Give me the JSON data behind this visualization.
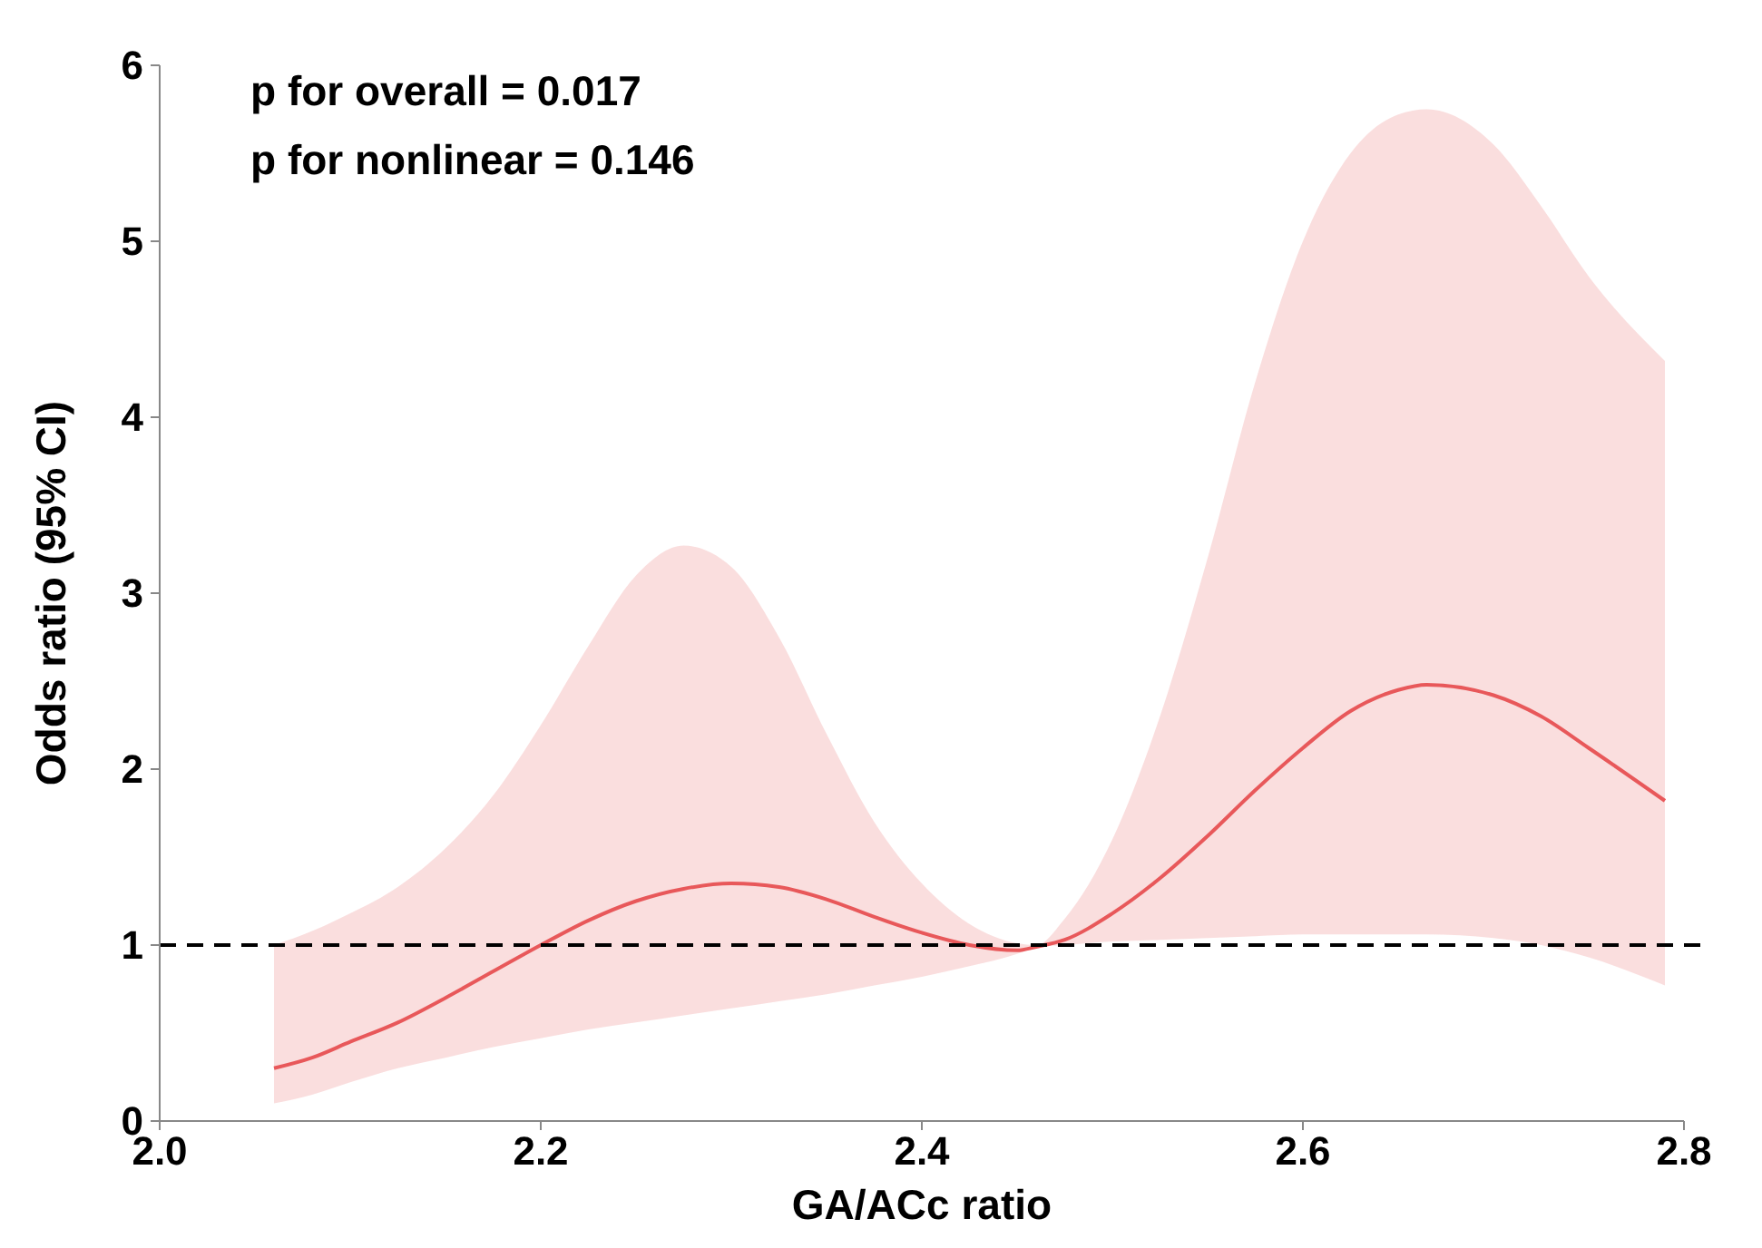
{
  "chart_data": {
    "type": "line",
    "xlabel": "GA/ACc ratio",
    "ylabel": "Odds ratio (95% CI)",
    "annotations": [
      "p for overall = 0.017",
      "p for nonlinear = 0.146"
    ],
    "xlim": [
      2.0,
      2.8
    ],
    "xticks": [
      {
        "value": 2,
        "label": "2.0"
      },
      2.2,
      2.4,
      2.6,
      2.8
    ],
    "ylim": [
      0,
      6
    ],
    "yticks": [
      0,
      1,
      2,
      3,
      4,
      5,
      6
    ],
    "grid": false,
    "marker": "none",
    "line_style": "solid",
    "ref_lines": [
      {
        "axis": "y",
        "value": 1,
        "label": null,
        "color": "#000000",
        "line_style": "dashed"
      }
    ],
    "series": [
      {
        "color": "#e8585a",
        "x": [
          2.06,
          2.08,
          2.1,
          2.125,
          2.15,
          2.175,
          2.2,
          2.225,
          2.25,
          2.275,
          2.3,
          2.325,
          2.35,
          2.375,
          2.4,
          2.425,
          2.45,
          2.46,
          2.475,
          2.5,
          2.525,
          2.55,
          2.575,
          2.6,
          2.625,
          2.65,
          2.665,
          2.7,
          2.725,
          2.75,
          2.79
        ],
        "values": [
          0.3,
          0.36,
          0.45,
          0.56,
          0.7,
          0.85,
          1.0,
          1.14,
          1.25,
          1.32,
          1.35,
          1.33,
          1.26,
          1.16,
          1.07,
          1.0,
          0.97,
          0.99,
          1.03,
          1.18,
          1.38,
          1.62,
          1.88,
          2.12,
          2.33,
          2.45,
          2.48,
          2.42,
          2.3,
          2.12,
          1.82
        ],
        "lower": [
          0.1,
          0.15,
          0.22,
          0.3,
          0.36,
          0.42,
          0.47,
          0.52,
          0.56,
          0.6,
          0.64,
          0.68,
          0.72,
          0.77,
          0.82,
          0.88,
          0.95,
          0.99,
          1.0,
          1.02,
          1.03,
          1.04,
          1.05,
          1.06,
          1.06,
          1.06,
          1.06,
          1.04,
          1.0,
          0.93,
          0.77
        ],
        "upper": [
          1.0,
          1.08,
          1.18,
          1.33,
          1.55,
          1.85,
          2.25,
          2.7,
          3.1,
          3.27,
          3.15,
          2.75,
          2.2,
          1.7,
          1.35,
          1.12,
          1.01,
          1.0,
          1.15,
          1.6,
          2.3,
          3.2,
          4.2,
          5.0,
          5.5,
          5.72,
          5.75,
          5.55,
          5.2,
          4.8,
          4.32
        ]
      }
    ]
  }
}
